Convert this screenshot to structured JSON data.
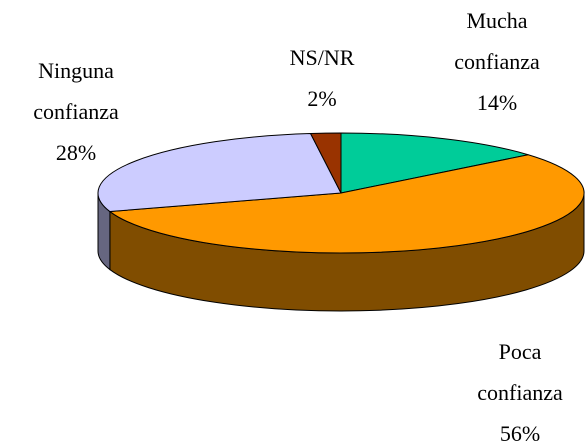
{
  "chart_data": {
    "type": "pie",
    "categories": [
      "Mucha confianza",
      "Poca confianza",
      "Ninguna confianza",
      "NS/NR"
    ],
    "values": [
      14,
      56,
      28,
      2
    ],
    "value_labels": [
      "14%",
      "56%",
      "28%",
      "2%"
    ],
    "colors": [
      "#00cc99",
      "#ff9900",
      "#ccccff",
      "#993300"
    ],
    "three_d": true
  }
}
